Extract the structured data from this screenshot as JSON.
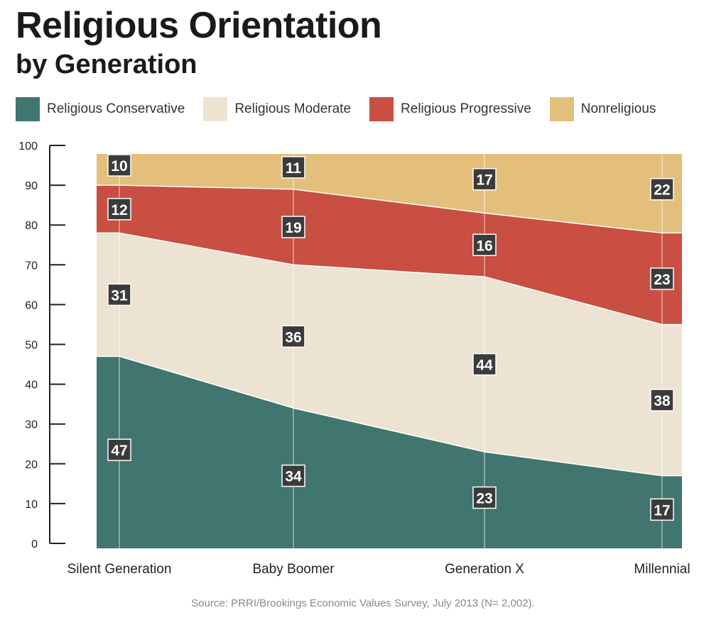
{
  "chart_data": {
    "type": "area",
    "stacked": true,
    "title": "Religious Orientation",
    "subtitle": "by Generation",
    "categories": [
      "Silent Generation",
      "Baby Boomer",
      "Generation X",
      "Millennial"
    ],
    "series": [
      {
        "name": "Religious Conservative",
        "color": "#41756f",
        "values": [
          47,
          34,
          23,
          17
        ]
      },
      {
        "name": "Religious Moderate",
        "color": "#ede3d3",
        "values": [
          31,
          36,
          44,
          38
        ]
      },
      {
        "name": "Religious Progressive",
        "color": "#c84f41",
        "values": [
          12,
          19,
          16,
          23
        ]
      },
      {
        "name": "Nonreligious",
        "color": "#e3bf7b",
        "values": [
          10,
          11,
          17,
          22
        ]
      }
    ],
    "ylim": [
      0,
      100
    ],
    "yticks": [
      0,
      10,
      20,
      30,
      40,
      50,
      60,
      70,
      80,
      90,
      100
    ],
    "grid": false,
    "legend_position": "top",
    "xlabel": "",
    "ylabel": ""
  },
  "source": "Source: PRRI/Brookings Economic Values Survey, July 2013 (N= 2,002)."
}
